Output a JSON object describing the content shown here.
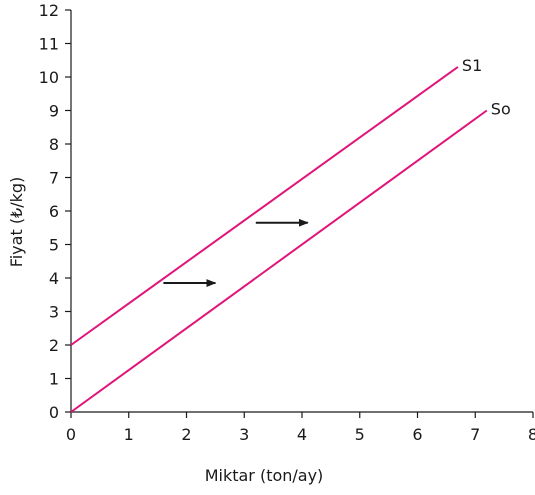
{
  "chart_data": {
    "type": "line",
    "title": "",
    "xlabel": "Miktar (ton/ay)",
    "ylabel": "Fiyat (₺/kg)",
    "xlim": [
      0,
      8
    ],
    "ylim": [
      0,
      12
    ],
    "xticks": [
      0,
      1,
      2,
      3,
      4,
      5,
      6,
      7,
      8
    ],
    "yticks": [
      0,
      1,
      2,
      3,
      4,
      5,
      6,
      7,
      8,
      9,
      10,
      11,
      12
    ],
    "grid": false,
    "series": [
      {
        "name": "S1",
        "x": [
          0,
          6.7
        ],
        "y": [
          2,
          10.3
        ],
        "color": "#e0157a"
      },
      {
        "name": "So",
        "x": [
          0,
          7.2
        ],
        "y": [
          0,
          9
        ],
        "color": "#e0157a"
      }
    ],
    "annotations": [
      {
        "type": "arrow",
        "direction": "right",
        "from": [
          1.6,
          3.85
        ],
        "to": [
          2.5,
          3.85
        ]
      },
      {
        "type": "arrow",
        "direction": "right",
        "from": [
          3.2,
          5.65
        ],
        "to": [
          4.1,
          5.65
        ]
      }
    ]
  }
}
